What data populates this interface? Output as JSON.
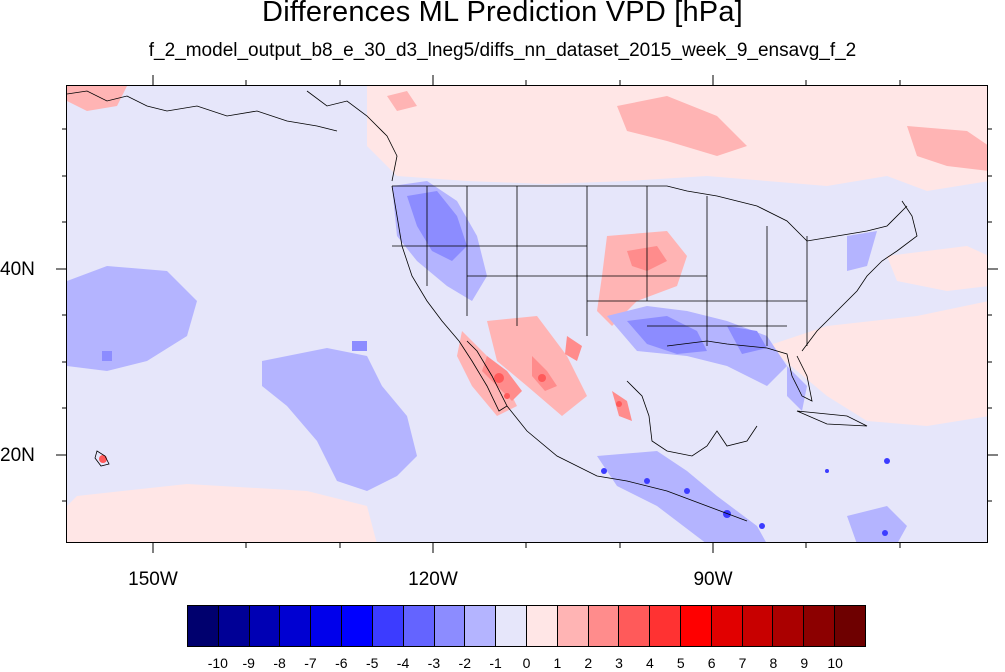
{
  "title": "Differences ML Prediction VPD [hPa]",
  "subtitle": "f_2_model_output_b8_e_30_d3_lneg5/diffs_nn_dataset_2015_week_9_ensavg_f_2",
  "map": {
    "lat_labels": [
      "40N",
      "20N"
    ],
    "lon_labels": [
      "150W",
      "120W",
      "90W"
    ],
    "background_color": "#e6e6fa"
  },
  "colorbar": {
    "labels": [
      "-10",
      "-9",
      "-8",
      "-7",
      "-6",
      "-5",
      "-4",
      "-3",
      "-2",
      "-1",
      "0",
      "1",
      "2",
      "3",
      "4",
      "5",
      "6",
      "7",
      "8",
      "9",
      "10"
    ],
    "colors": [
      "#00006e",
      "#000096",
      "#0000b4",
      "#0000d2",
      "#0000eb",
      "#0000ff",
      "#3c3cff",
      "#6464ff",
      "#8c8cff",
      "#b4b4ff",
      "#e6e6fa",
      "#ffe6e6",
      "#ffb4b4",
      "#ff8c8c",
      "#ff5a5a",
      "#ff3232",
      "#ff0000",
      "#e10000",
      "#c80000",
      "#aa0000",
      "#8c0000",
      "#6e0000"
    ]
  }
}
